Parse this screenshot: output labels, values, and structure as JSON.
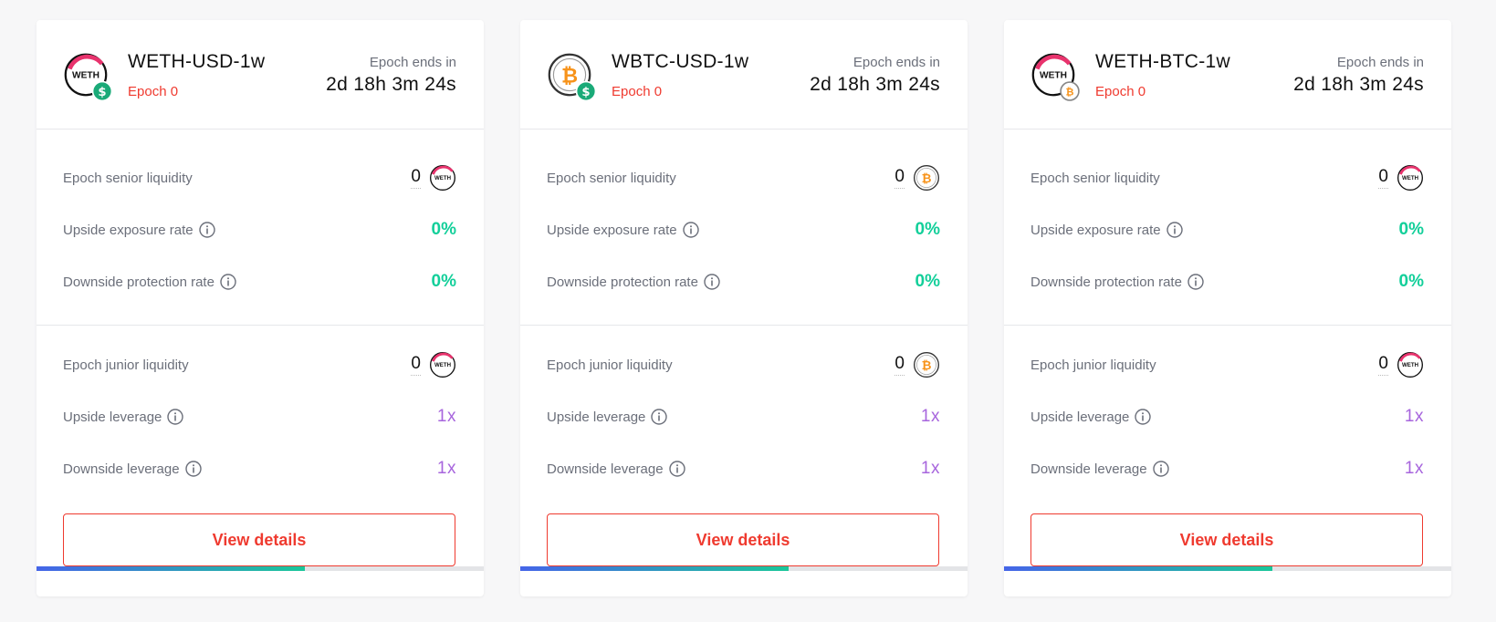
{
  "cards": [
    {
      "title": "WETH-USD-1w",
      "epoch": "Epoch 0",
      "ends_label": "Epoch ends in",
      "ends_time": "2d 18h 3m 24s",
      "pool_icon": "weth-usd-icon",
      "token_icon": "weth-icon",
      "senior_label": "Epoch senior liquidity",
      "senior_value": "0",
      "upside_exposure_label": "Upside exposure rate",
      "upside_exposure_value": "0%",
      "downside_protection_label": "Downside protection rate",
      "downside_protection_value": "0%",
      "junior_label": "Epoch junior liquidity",
      "junior_value": "0",
      "upside_leverage_label": "Upside leverage",
      "upside_leverage_value": "1x",
      "downside_leverage_label": "Downside leverage",
      "downside_leverage_value": "1x",
      "button_label": "View details",
      "progress": 0.6
    },
    {
      "title": "WBTC-USD-1w",
      "epoch": "Epoch 0",
      "ends_label": "Epoch ends in",
      "ends_time": "2d 18h 3m 24s",
      "pool_icon": "wbtc-usd-icon",
      "token_icon": "wbtc-icon",
      "senior_label": "Epoch senior liquidity",
      "senior_value": "0",
      "upside_exposure_label": "Upside exposure rate",
      "upside_exposure_value": "0%",
      "downside_protection_label": "Downside protection rate",
      "downside_protection_value": "0%",
      "junior_label": "Epoch junior liquidity",
      "junior_value": "0",
      "upside_leverage_label": "Upside leverage",
      "upside_leverage_value": "1x",
      "downside_leverage_label": "Downside leverage",
      "downside_leverage_value": "1x",
      "button_label": "View details",
      "progress": 0.6
    },
    {
      "title": "WETH-BTC-1w",
      "epoch": "Epoch 0",
      "ends_label": "Epoch ends in",
      "ends_time": "2d 18h 3m 24s",
      "pool_icon": "weth-btc-icon",
      "token_icon": "weth-icon",
      "senior_label": "Epoch senior liquidity",
      "senior_value": "0",
      "upside_exposure_label": "Upside exposure rate",
      "upside_exposure_value": "0%",
      "downside_protection_label": "Downside protection rate",
      "downside_protection_value": "0%",
      "junior_label": "Epoch junior liquidity",
      "junior_value": "0",
      "upside_leverage_label": "Upside leverage",
      "upside_leverage_value": "1x",
      "downside_leverage_label": "Downside leverage",
      "downside_leverage_value": "1x",
      "button_label": "View details",
      "progress": 0.6
    }
  ],
  "colors": {
    "accent_red": "#ef3a2f",
    "positive_green": "#13cf9a",
    "leverage_purple": "#a765dd",
    "progress_start": "#4565e8",
    "progress_end": "#1bc79a"
  }
}
